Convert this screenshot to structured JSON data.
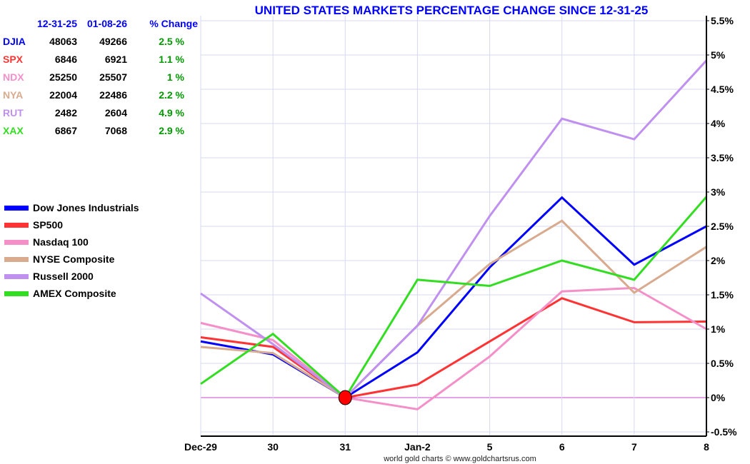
{
  "table": {
    "headers": [
      "12-31-25",
      "01-08-26",
      "% Change"
    ],
    "header_color": "#0000ff",
    "change_color": "#009900",
    "rows": [
      {
        "symbol": "DJIA",
        "start": "48063",
        "end": "49266",
        "change": "2.5 %",
        "color": "#0000ff"
      },
      {
        "symbol": "SPX",
        "start": "6846",
        "end": "6921",
        "change": "1.1 %",
        "color": "#ff3333"
      },
      {
        "symbol": "NDX",
        "start": "25250",
        "end": "25507",
        "change": "1 %",
        "color": "#f48fc8"
      },
      {
        "symbol": "NYA",
        "start": "22004",
        "end": "22486",
        "change": "2.2 %",
        "color": "#d8aa8e"
      },
      {
        "symbol": "RUT",
        "start": "2482",
        "end": "2604",
        "change": "4.9 %",
        "color": "#c090f0"
      },
      {
        "symbol": "XAX",
        "start": "6867",
        "end": "7068",
        "change": "2.9 %",
        "color": "#33dd22"
      }
    ]
  },
  "credit": "world gold charts © www.goldchartsrus.com",
  "chart_data": {
    "type": "line",
    "title": "UNITED STATES MARKETS PERCENTAGE CHANGE SINCE 12-31-25",
    "categories": [
      "Dec-29",
      "30",
      "31",
      "Jan-2",
      "5",
      "6",
      "7",
      "8"
    ],
    "ylim": [
      -0.55,
      5.6
    ],
    "yticks": [
      -0.5,
      0,
      0.5,
      1,
      1.5,
      2,
      2.5,
      3,
      3.5,
      4,
      4.5,
      5,
      5.5
    ],
    "ytick_labels": [
      "-0.5%",
      "0%",
      "0.5%",
      "1%",
      "1.5%",
      "2%",
      "2.5%",
      "3%",
      "3.5%",
      "4%",
      "4.5%",
      "5%",
      "5.5%"
    ],
    "grid": true,
    "legend": "left",
    "baseline_marker": {
      "x": "31",
      "y": 0,
      "color": "#ff0000"
    },
    "series": [
      {
        "name": "Dow Jones Industrials",
        "color": "#0000ff",
        "values": [
          0.82,
          0.63,
          0,
          0.66,
          1.9,
          2.92,
          1.94,
          2.5
        ]
      },
      {
        "name": "SP500",
        "color": "#ff3333",
        "values": [
          0.88,
          0.74,
          0,
          0.19,
          0.82,
          1.45,
          1.1,
          1.11
        ]
      },
      {
        "name": "Nasdaq 100",
        "color": "#f48fc8",
        "values": [
          1.09,
          0.84,
          0,
          -0.17,
          0.6,
          1.55,
          1.6,
          1.0
        ]
      },
      {
        "name": "NYSE Composite",
        "color": "#d8aa8e",
        "values": [
          0.74,
          0.65,
          0,
          1.05,
          1.95,
          2.58,
          1.53,
          2.2
        ]
      },
      {
        "name": "Russell 2000",
        "color": "#c090f0",
        "values": [
          1.52,
          0.78,
          0,
          1.05,
          2.65,
          4.07,
          3.77,
          4.92
        ]
      },
      {
        "name": "AMEX Composite",
        "color": "#33dd22",
        "values": [
          0.2,
          0.93,
          0,
          1.72,
          1.63,
          2.0,
          1.72,
          2.93
        ]
      }
    ]
  }
}
